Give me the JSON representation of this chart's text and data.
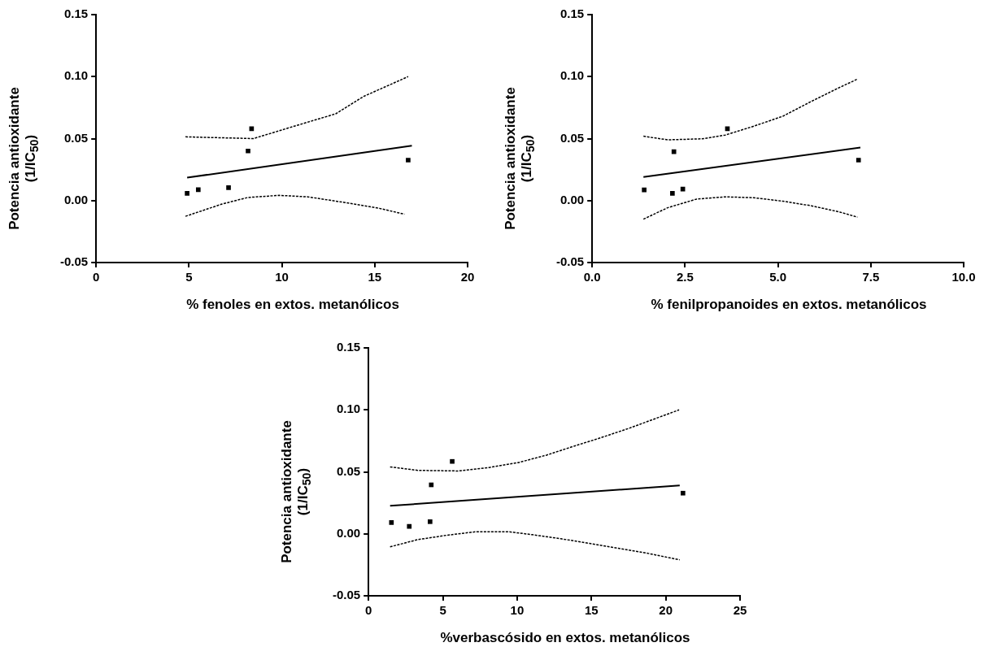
{
  "chart_data": [
    {
      "type": "scatter",
      "xlabel": "% fenoles en extos. metanólicos",
      "ylabel": "Potencia antioxidante (1/IC$_{50}$)",
      "xlim": [
        0,
        20
      ],
      "xticks": [
        0,
        5,
        10,
        15,
        20
      ],
      "ylim": [
        -0.05,
        0.15
      ],
      "yticks": [
        {
          "value": -0.05,
          "label": "-0.05"
        },
        {
          "value": 0,
          "label": "0.00"
        },
        {
          "value": 0.05,
          "label": "0.05"
        },
        {
          "value": 0.1,
          "label": "0.10"
        },
        {
          "value": 0.15,
          "label": "0.15"
        }
      ],
      "grid": false,
      "legend": false,
      "marker": "square",
      "series": [
        {
          "type": "scatter",
          "color": "#000000",
          "x": [
            4.9,
            5.5,
            7.13,
            8.18,
            8.37,
            16.8
          ],
          "values": [
            0.0058,
            0.0088,
            0.0104,
            0.04,
            0.058,
            0.0326
          ]
        },
        {
          "type": "line",
          "color": "#000000",
          "marker": "none",
          "line_style": "solid",
          "x": [
            4.9,
            17.0
          ],
          "values": [
            0.0185,
            0.0442
          ]
        },
        {
          "type": "line",
          "color": "#000000",
          "marker": "none",
          "line_style": "dotted",
          "x": [
            4.81,
            8.47,
            10.6,
            12.9,
            14.4,
            16.8
          ],
          "values": [
            0.0514,
            0.05,
            0.0597,
            0.07,
            0.084,
            0.1
          ]
        },
        {
          "type": "line",
          "color": "#000000",
          "marker": "none",
          "line_style": "dotted",
          "x": [
            4.81,
            6.78,
            8.17,
            9.86,
            11.4,
            13.4,
            15.25,
            16.6
          ],
          "values": [
            -0.0127,
            -0.0028,
            0.0025,
            0.0042,
            0.003,
            -0.0016,
            -0.0063,
            -0.011
          ]
        }
      ]
    },
    {
      "type": "scatter",
      "xlabel": "% fenilpropanoides en extos. metanólicos",
      "ylabel": "Potencia antioxidante (1/IC$_{50}$)",
      "xlim": [
        0,
        10
      ],
      "xticks": [
        {
          "value": 0,
          "label": "0.0"
        },
        {
          "value": 2.5,
          "label": "2.5"
        },
        {
          "value": 5,
          "label": "5.0"
        },
        {
          "value": 7.5,
          "label": "7.5"
        },
        {
          "value": 10,
          "label": "10.0"
        }
      ],
      "ylim": [
        -0.05,
        0.15
      ],
      "yticks": [
        {
          "value": -0.05,
          "label": "-0.05"
        },
        {
          "value": 0,
          "label": "0.00"
        },
        {
          "value": 0.05,
          "label": "0.05"
        },
        {
          "value": 0.1,
          "label": "0.10"
        },
        {
          "value": 0.15,
          "label": "0.15"
        }
      ],
      "grid": false,
      "legend": false,
      "marker": "square",
      "series": [
        {
          "type": "scatter",
          "color": "#000000",
          "x": [
            1.4,
            2.16,
            2.44,
            2.2,
            3.64,
            7.17
          ],
          "values": [
            0.0086,
            0.0058,
            0.0093,
            0.0394,
            0.058,
            0.0326
          ]
        },
        {
          "type": "line",
          "color": "#000000",
          "marker": "none",
          "line_style": "solid",
          "x": [
            1.38,
            7.22
          ],
          "values": [
            0.019,
            0.0428
          ]
        },
        {
          "type": "line",
          "color": "#000000",
          "marker": "none",
          "line_style": "dotted",
          "x": [
            1.38,
            2.03,
            2.96,
            3.58,
            4.35,
            5.13,
            5.9,
            6.67,
            7.14
          ],
          "values": [
            0.0519,
            0.049,
            0.0498,
            0.0528,
            0.06,
            0.068,
            0.08,
            0.0914,
            0.098
          ]
        },
        {
          "type": "line",
          "color": "#000000",
          "marker": "none",
          "line_style": "dotted",
          "x": [
            1.38,
            2.03,
            2.81,
            3.58,
            4.35,
            5.13,
            5.9,
            6.67,
            7.14
          ],
          "values": [
            -0.015,
            -0.0058,
            0.0012,
            0.003,
            0.0023,
            -0.0005,
            -0.0042,
            -0.0093,
            -0.0134
          ]
        }
      ]
    },
    {
      "type": "scatter",
      "xlabel": "%verbascósido en extos. metanólicos",
      "ylabel": "Potencia antioxidante (1/IC$_{50}$)",
      "xlim": [
        0,
        25
      ],
      "xticks": [
        0,
        5,
        10,
        15,
        20,
        25
      ],
      "ylim": [
        -0.05,
        0.15
      ],
      "yticks": [
        {
          "value": -0.05,
          "label": "-0.05"
        },
        {
          "value": 0,
          "label": "0.00"
        },
        {
          "value": 0.05,
          "label": "0.05"
        },
        {
          "value": 0.1,
          "label": "0.10"
        },
        {
          "value": 0.15,
          "label": "0.15"
        }
      ],
      "grid": false,
      "legend": false,
      "marker": "square",
      "series": [
        {
          "type": "scatter",
          "color": "#000000",
          "x": [
            1.54,
            2.74,
            4.14,
            4.22,
            5.63,
            21.16
          ],
          "values": [
            0.0091,
            0.006,
            0.0098,
            0.0395,
            0.0584,
            0.0328
          ]
        },
        {
          "type": "line",
          "color": "#000000",
          "marker": "none",
          "line_style": "solid",
          "x": [
            1.45,
            20.94
          ],
          "values": [
            0.0226,
            0.039
          ]
        },
        {
          "type": "line",
          "color": "#000000",
          "marker": "none",
          "line_style": "dotted",
          "x": [
            1.45,
            3.31,
            6.01,
            8.13,
            10.06,
            11.98,
            13.9,
            15.5,
            17.5,
            20.9
          ],
          "values": [
            0.054,
            0.0512,
            0.0507,
            0.0535,
            0.0574,
            0.0635,
            0.071,
            0.077,
            0.085,
            0.1
          ]
        },
        {
          "type": "line",
          "color": "#000000",
          "marker": "none",
          "line_style": "dotted",
          "x": [
            1.45,
            3.31,
            5.24,
            7.17,
            9.48,
            11.02,
            12.95,
            14.87,
            16.8,
            18.73,
            20.94
          ],
          "values": [
            -0.0105,
            -0.0047,
            -0.0012,
            0.0016,
            0.0016,
            -0.0007,
            -0.004,
            -0.0077,
            -0.0116,
            -0.0156,
            -0.021
          ]
        }
      ]
    }
  ]
}
